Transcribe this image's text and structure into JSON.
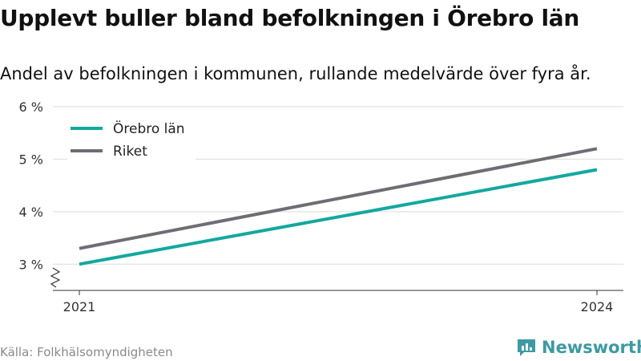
{
  "title": "Upplevt buller bland befolkningen i Örebro län",
  "subtitle": "Andel av befolkningen i kommunen, rullande medelvärde över fyra år.",
  "source": "Källa: Folkhälsomyndigheten",
  "brand": {
    "name": "Newsworthy",
    "icon": "newsworthy-logo-icon"
  },
  "chart_data": {
    "type": "line",
    "x": [
      2021,
      2024
    ],
    "x_tick_labels": [
      "2021",
      "2024"
    ],
    "ylim": [
      2.5,
      6
    ],
    "y_ticks": [
      3,
      4,
      5,
      6
    ],
    "y_tick_labels": [
      "3 %",
      "4 %",
      "5 %",
      "6 %"
    ],
    "y_axis_broken": true,
    "grid": true,
    "legend": "top-left",
    "series": [
      {
        "name": "Örebro län",
        "color": "#13a89e",
        "values": [
          3.0,
          4.8
        ]
      },
      {
        "name": "Riket",
        "color": "#6e6d74",
        "values": [
          3.3,
          5.2
        ]
      }
    ]
  }
}
